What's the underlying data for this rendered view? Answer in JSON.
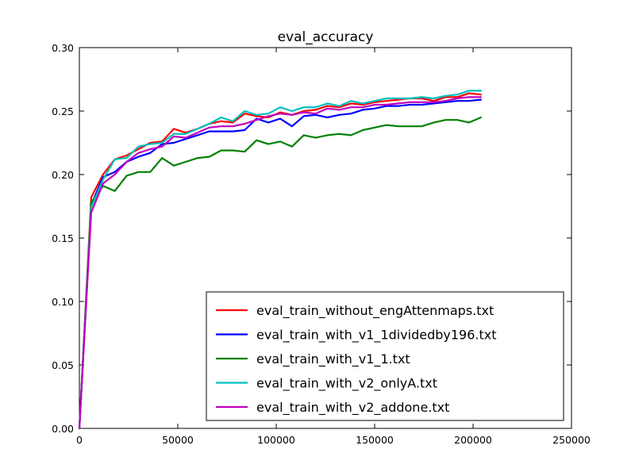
{
  "chart_data": {
    "type": "line",
    "title": "eval_accuracy",
    "xlabel": "",
    "ylabel": "",
    "xlim": [
      0,
      250000
    ],
    "ylim": [
      0.0,
      0.3
    ],
    "x_ticks": [
      0,
      50000,
      100000,
      150000,
      200000,
      250000
    ],
    "x_tick_labels": [
      "0",
      "50000",
      "100000",
      "150000",
      "200000",
      "250000"
    ],
    "y_ticks": [
      0.0,
      0.05,
      0.1,
      0.15,
      0.2,
      0.25,
      0.3
    ],
    "y_tick_labels": [
      "0.00",
      "0.05",
      "0.10",
      "0.15",
      "0.20",
      "0.25",
      "0.30"
    ],
    "grid": false,
    "legend_position": "lower-right",
    "x": [
      0,
      6000,
      12000,
      18000,
      24000,
      30000,
      36000,
      42000,
      48000,
      54000,
      60000,
      66000,
      72000,
      78000,
      84000,
      90000,
      96000,
      102000,
      108000,
      114000,
      120000,
      126000,
      132000,
      138000,
      144000,
      150000,
      156000,
      162000,
      168000,
      174000,
      180000,
      186000,
      192000,
      198000,
      204000
    ],
    "series": [
      {
        "name": "eval_train_without_engAttenmaps.txt",
        "color": "#ff0000",
        "values": [
          0.0,
          0.182,
          0.2,
          0.212,
          0.215,
          0.22,
          0.225,
          0.226,
          0.236,
          0.233,
          0.236,
          0.24,
          0.242,
          0.241,
          0.248,
          0.246,
          0.245,
          0.249,
          0.247,
          0.25,
          0.251,
          0.254,
          0.253,
          0.256,
          0.255,
          0.257,
          0.258,
          0.259,
          0.26,
          0.26,
          0.258,
          0.261,
          0.261,
          0.264,
          0.263
        ]
      },
      {
        "name": "eval_train_with_v1_1dividedby196.txt",
        "color": "#0000ff",
        "values": [
          0.0,
          0.176,
          0.198,
          0.202,
          0.21,
          0.214,
          0.217,
          0.224,
          0.225,
          0.228,
          0.231,
          0.234,
          0.234,
          0.234,
          0.235,
          0.244,
          0.241,
          0.244,
          0.238,
          0.246,
          0.247,
          0.245,
          0.247,
          0.248,
          0.251,
          0.252,
          0.254,
          0.254,
          0.255,
          0.255,
          0.256,
          0.257,
          0.258,
          0.258,
          0.259
        ]
      },
      {
        "name": "eval_train_with_v1_1.txt",
        "color": "#008000",
        "values": [
          0.0,
          0.178,
          0.191,
          0.187,
          0.199,
          0.202,
          0.202,
          0.213,
          0.207,
          0.21,
          0.213,
          0.214,
          0.219,
          0.219,
          0.218,
          0.227,
          0.224,
          0.226,
          0.222,
          0.231,
          0.229,
          0.231,
          0.232,
          0.231,
          0.235,
          0.237,
          0.239,
          0.238,
          0.238,
          0.238,
          0.241,
          0.243,
          0.243,
          0.241,
          0.245
        ]
      },
      {
        "name": "eval_train_with_v2_onlyA.txt",
        "color": "#00bfbf",
        "values": [
          0.0,
          0.174,
          0.196,
          0.212,
          0.213,
          0.222,
          0.224,
          0.225,
          0.232,
          0.232,
          0.236,
          0.24,
          0.245,
          0.242,
          0.25,
          0.247,
          0.248,
          0.253,
          0.25,
          0.253,
          0.253,
          0.256,
          0.254,
          0.258,
          0.256,
          0.258,
          0.26,
          0.26,
          0.26,
          0.261,
          0.26,
          0.262,
          0.263,
          0.266,
          0.266
        ]
      },
      {
        "name": "eval_train_with_v2_addone.txt",
        "color": "#bf00bf",
        "values": [
          0.0,
          0.17,
          0.193,
          0.2,
          0.21,
          0.217,
          0.22,
          0.222,
          0.23,
          0.229,
          0.233,
          0.237,
          0.238,
          0.238,
          0.24,
          0.243,
          0.246,
          0.248,
          0.247,
          0.249,
          0.248,
          0.252,
          0.251,
          0.253,
          0.253,
          0.255,
          0.255,
          0.256,
          0.257,
          0.257,
          0.257,
          0.258,
          0.26,
          0.261,
          0.261
        ]
      }
    ]
  }
}
